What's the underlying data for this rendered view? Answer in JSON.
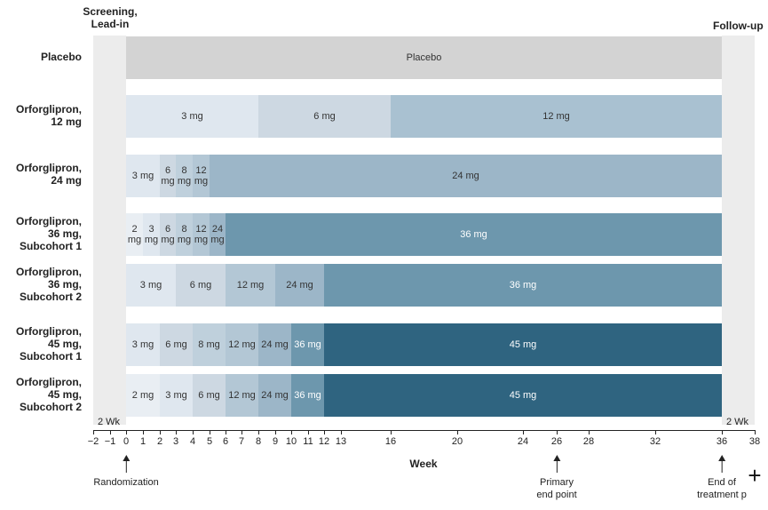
{
  "phases": {
    "screening": "Screening,\nLead-in",
    "follow_up": "Follow-up",
    "pre_duration": "2 Wk",
    "post_duration": "2 Wk"
  },
  "axis": {
    "title": "Week",
    "ticks": [
      "−2",
      "−1",
      "0",
      "1",
      "2",
      "3",
      "4",
      "5",
      "6",
      "7",
      "8",
      "9",
      "10",
      "11",
      "12",
      "13",
      "16",
      "20",
      "24",
      "26",
      "28",
      "32",
      "36",
      "38"
    ]
  },
  "markers": [
    {
      "label": "Randomization"
    },
    {
      "label": "Primary\nend point"
    },
    {
      "label": "End of\ntreatment p"
    }
  ],
  "arms": [
    {
      "label": "Placebo",
      "segments": [
        {
          "text": "Placebo",
          "color": "#d3d3d3",
          "text_color": "#333333"
        }
      ]
    },
    {
      "label": "Orforglipron,\n12 mg",
      "segments": [
        {
          "text": "3 mg",
          "color": "#dfe7ef",
          "text_color": "#333333"
        },
        {
          "text": "6 mg",
          "color": "#cdd8e2",
          "text_color": "#333333"
        },
        {
          "text": "12 mg",
          "color": "#a9c1d1",
          "text_color": "#333333"
        }
      ]
    },
    {
      "label": "Orforglipron,\n24 mg",
      "segments": [
        {
          "text": "3 mg",
          "color": "#dfe7ef",
          "text_color": "#333333"
        },
        {
          "text": "6\nmg",
          "color": "#cdd8e2",
          "text_color": "#333333"
        },
        {
          "text": "8\nmg",
          "color": "#bfd0dc",
          "text_color": "#333333"
        },
        {
          "text": "12\nmg",
          "color": "#b3c7d5",
          "text_color": "#333333"
        },
        {
          "text": "24 mg",
          "color": "#9cb6c8",
          "text_color": "#333333"
        }
      ]
    },
    {
      "label": "Orforglipron,\n36 mg,\nSubcohort 1",
      "segments": [
        {
          "text": "2\nmg",
          "color": "#e9eef3",
          "text_color": "#333333"
        },
        {
          "text": "3\nmg",
          "color": "#dfe7ef",
          "text_color": "#333333"
        },
        {
          "text": "6\nmg",
          "color": "#cdd8e2",
          "text_color": "#333333"
        },
        {
          "text": "8\nmg",
          "color": "#bfd0dc",
          "text_color": "#333333"
        },
        {
          "text": "12\nmg",
          "color": "#b3c7d5",
          "text_color": "#333333"
        },
        {
          "text": "24\nmg",
          "color": "#9cb6c8",
          "text_color": "#333333"
        },
        {
          "text": "36 mg",
          "color": "#6d97ad",
          "text_color": "#ffffff"
        }
      ]
    },
    {
      "label": "Orforglipron,\n36 mg,\nSubcohort 2",
      "segments": [
        {
          "text": "3 mg",
          "color": "#dfe7ef",
          "text_color": "#333333"
        },
        {
          "text": "6 mg",
          "color": "#cdd8e2",
          "text_color": "#333333"
        },
        {
          "text": "12 mg",
          "color": "#b3c7d5",
          "text_color": "#333333"
        },
        {
          "text": "24 mg",
          "color": "#9cb6c8",
          "text_color": "#333333"
        },
        {
          "text": "36 mg",
          "color": "#6d97ad",
          "text_color": "#ffffff"
        }
      ]
    },
    {
      "label": "Orforglipron,\n45 mg,\nSubcohort 1",
      "segments": [
        {
          "text": "3 mg",
          "color": "#dfe7ef",
          "text_color": "#333333"
        },
        {
          "text": "6 mg",
          "color": "#cdd8e2",
          "text_color": "#333333"
        },
        {
          "text": "8 mg",
          "color": "#bfd0dc",
          "text_color": "#333333"
        },
        {
          "text": "12 mg",
          "color": "#b3c7d5",
          "text_color": "#333333"
        },
        {
          "text": "24 mg",
          "color": "#9cb6c8",
          "text_color": "#333333"
        },
        {
          "text": "36 mg",
          "color": "#6d97ad",
          "text_color": "#ffffff"
        },
        {
          "text": "45 mg",
          "color": "#2f6480",
          "text_color": "#ffffff"
        }
      ]
    },
    {
      "label": "Orforglipron,\n45 mg,\nSubcohort 2",
      "segments": [
        {
          "text": "2 mg",
          "color": "#e9eef3",
          "text_color": "#333333"
        },
        {
          "text": "3 mg",
          "color": "#dfe7ef",
          "text_color": "#333333"
        },
        {
          "text": "6 mg",
          "color": "#cdd8e2",
          "text_color": "#333333"
        },
        {
          "text": "12 mg",
          "color": "#b3c7d5",
          "text_color": "#333333"
        },
        {
          "text": "24 mg",
          "color": "#9cb6c8",
          "text_color": "#333333"
        },
        {
          "text": "36 mg",
          "color": "#6d97ad",
          "text_color": "#ffffff"
        },
        {
          "text": "45 mg",
          "color": "#2f6480",
          "text_color": "#ffffff"
        }
      ]
    }
  ],
  "controls": {
    "zoom_in": "+"
  }
}
